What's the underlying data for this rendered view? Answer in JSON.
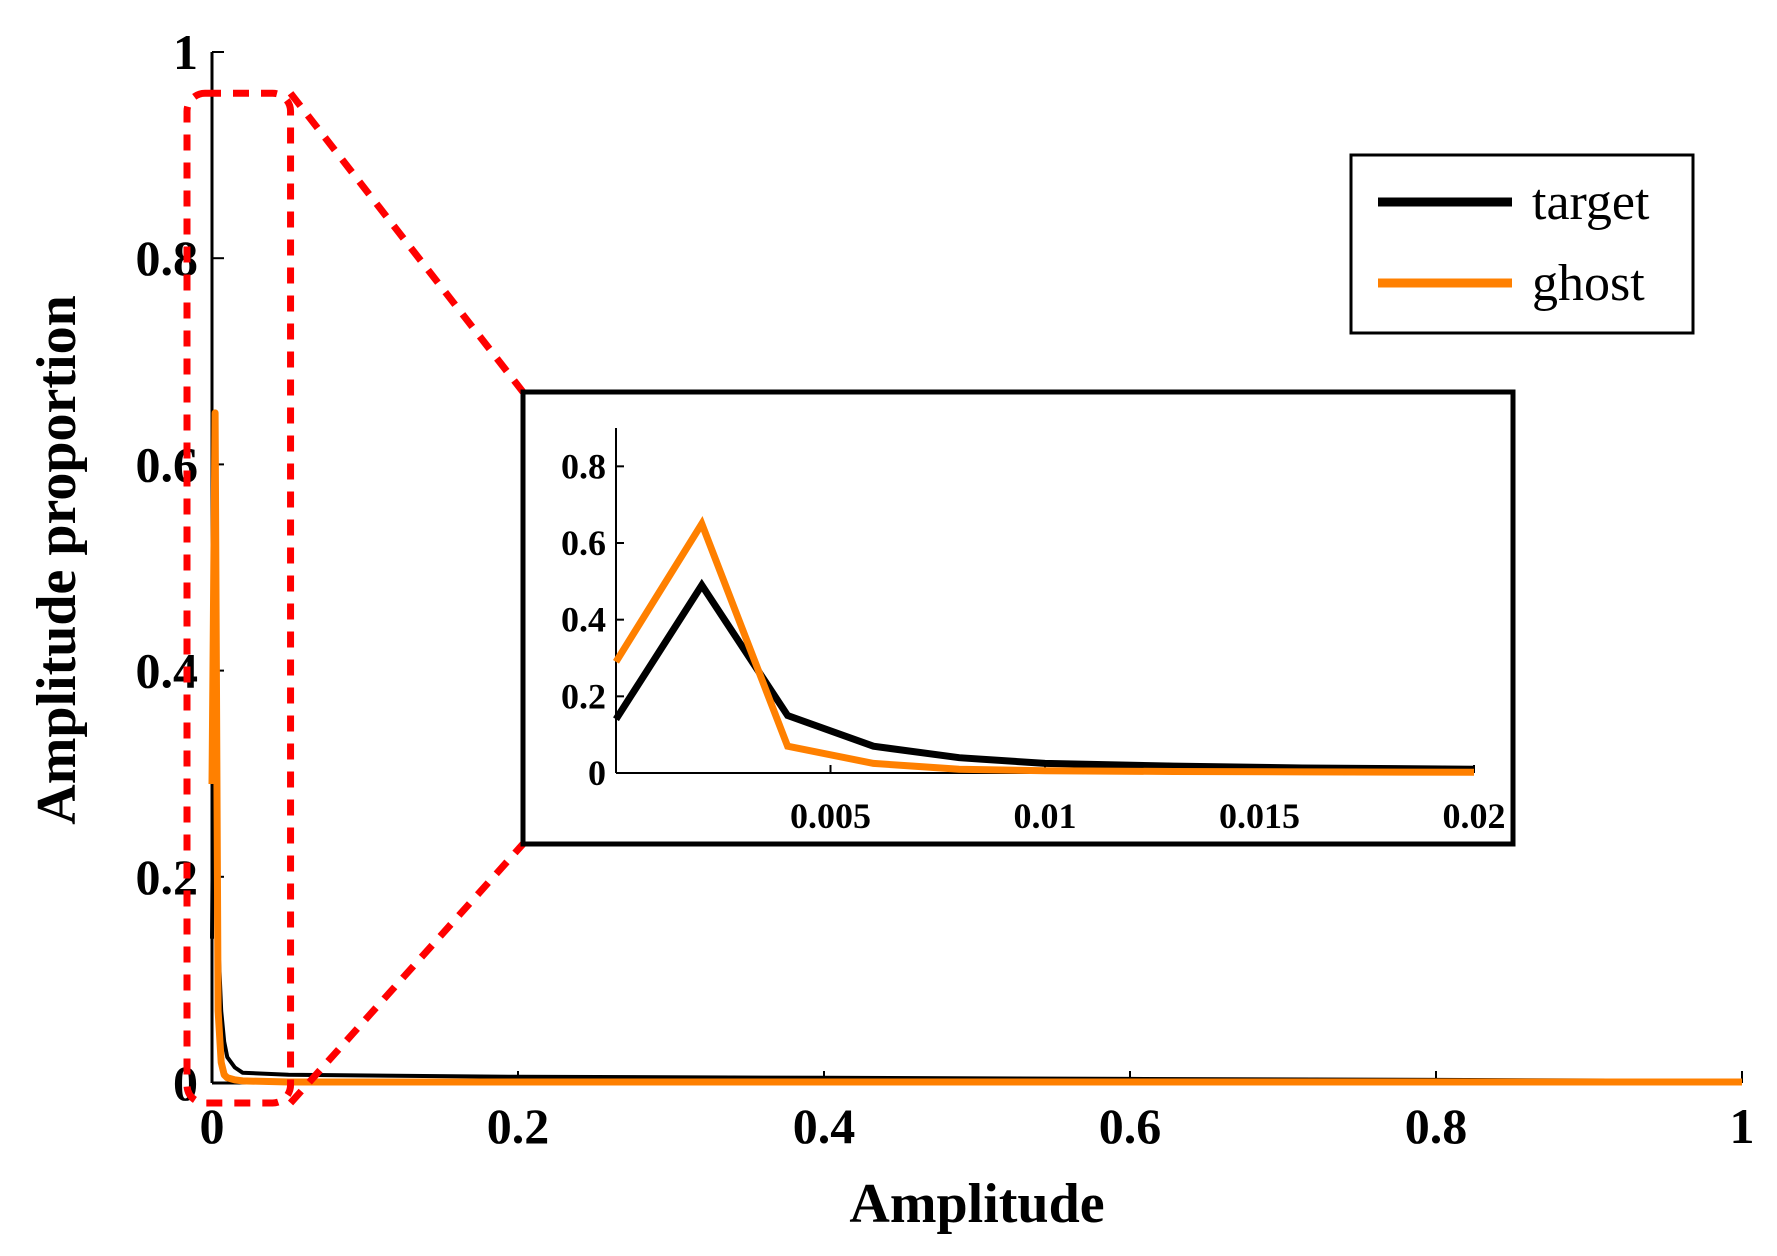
{
  "colors": {
    "target": "#000000",
    "ghost": "#ff8000",
    "zoom_box": "#ff0000"
  },
  "chart_data": [
    {
      "type": "line",
      "id": "main",
      "title": "",
      "xlabel": "Amplitude",
      "ylabel": "Amplitude proportion",
      "xlim": [
        0,
        1
      ],
      "ylim": [
        0,
        1
      ],
      "xticks": [
        0,
        0.2,
        0.4,
        0.6,
        0.8,
        1
      ],
      "xtick_labels": [
        "0",
        "0.2",
        "0.4",
        "0.6",
        "0.8",
        "1"
      ],
      "yticks": [
        0,
        0.2,
        0.4,
        0.6,
        0.8,
        1
      ],
      "ytick_labels": [
        "0",
        "0.2",
        "0.4",
        "0.6",
        "0.8",
        "1"
      ],
      "legend": {
        "position": "top-right",
        "entries": [
          "target",
          "ghost"
        ]
      },
      "series": [
        {
          "name": "target",
          "color": "#000000",
          "x": [
            0,
            0.002,
            0.004,
            0.006,
            0.008,
            0.01,
            0.015,
            0.02,
            0.05,
            0.2,
            0.4,
            0.6,
            0.8,
            1
          ],
          "y": [
            0.14,
            0.49,
            0.14,
            0.07,
            0.04,
            0.025,
            0.015,
            0.01,
            0.008,
            0.006,
            0.005,
            0.004,
            0.003,
            0.002
          ]
        },
        {
          "name": "ghost",
          "color": "#ff8000",
          "x": [
            0,
            0.002,
            0.004,
            0.006,
            0.008,
            0.01,
            0.015,
            0.02,
            0.05,
            1
          ],
          "y": [
            0.29,
            0.65,
            0.07,
            0.02,
            0.008,
            0.005,
            0.003,
            0.002,
            0.001,
            0.001
          ]
        }
      ],
      "annotations": [
        {
          "type": "zoom-box",
          "x_range": [
            0,
            0.035
          ],
          "y_range": [
            0,
            0.96
          ],
          "links_to": "inset"
        }
      ]
    },
    {
      "type": "line",
      "id": "inset",
      "title": "",
      "xlabel": "",
      "ylabel": "",
      "xlim": [
        0,
        0.02
      ],
      "ylim": [
        0,
        0.9
      ],
      "xticks": [
        0.005,
        0.01,
        0.015,
        0.02
      ],
      "xtick_labels": [
        "0.005",
        "0.01",
        "0.015",
        "0.02"
      ],
      "yticks": [
        0,
        0.2,
        0.4,
        0.6,
        0.8
      ],
      "ytick_labels": [
        "0",
        "0.2",
        "0.4",
        "0.6",
        "0.8"
      ],
      "series": [
        {
          "name": "target",
          "color": "#000000",
          "x": [
            0,
            0.002,
            0.004,
            0.006,
            0.008,
            0.01,
            0.013,
            0.016,
            0.02
          ],
          "y": [
            0.14,
            0.49,
            0.15,
            0.07,
            0.04,
            0.025,
            0.018,
            0.013,
            0.01
          ]
        },
        {
          "name": "ghost",
          "color": "#ff8000",
          "x": [
            0,
            0.002,
            0.004,
            0.006,
            0.008,
            0.01,
            0.013,
            0.016,
            0.02
          ],
          "y": [
            0.29,
            0.65,
            0.07,
            0.025,
            0.01,
            0.006,
            0.004,
            0.003,
            0.002
          ]
        }
      ]
    }
  ]
}
